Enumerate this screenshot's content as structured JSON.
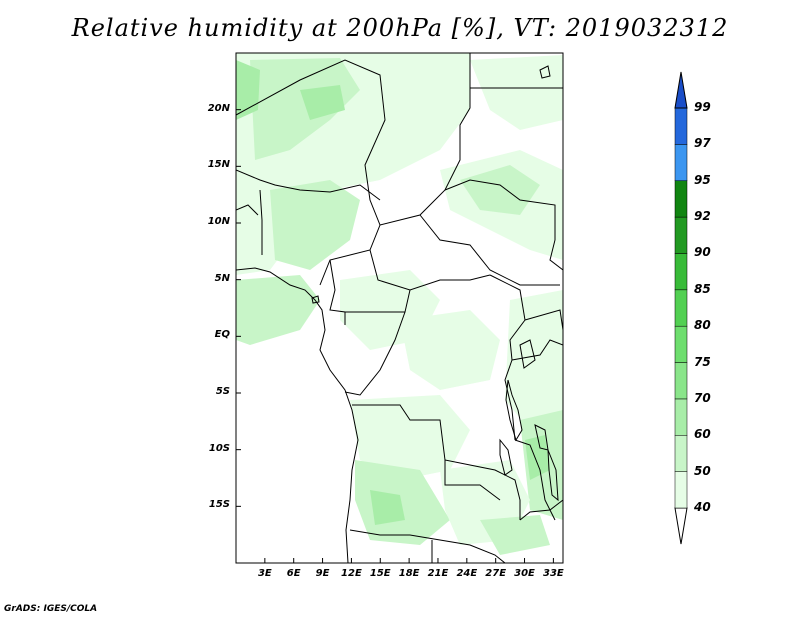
{
  "title": "Relative humidity at 200hPa [%], VT: 2019032312",
  "footer": "GrADS: IGES/COLA",
  "map": {
    "lon_range": [
      0,
      34
    ],
    "lat_range": [
      -20,
      25
    ],
    "lat_ticks": [
      {
        "value": 20,
        "label": "20N"
      },
      {
        "value": 15,
        "label": "15N"
      },
      {
        "value": 10,
        "label": "10N"
      },
      {
        "value": 5,
        "label": "5N"
      },
      {
        "value": 0,
        "label": "EQ"
      },
      {
        "value": -5,
        "label": "5S"
      },
      {
        "value": -10,
        "label": "10S"
      },
      {
        "value": -15,
        "label": "15S"
      }
    ],
    "lon_ticks": [
      {
        "value": 3,
        "label": "3E"
      },
      {
        "value": 6,
        "label": "6E"
      },
      {
        "value": 9,
        "label": "9E"
      },
      {
        "value": 12,
        "label": "12E"
      },
      {
        "value": 15,
        "label": "15E"
      },
      {
        "value": 18,
        "label": "18E"
      },
      {
        "value": 21,
        "label": "21E"
      },
      {
        "value": 24,
        "label": "24E"
      },
      {
        "value": 27,
        "label": "27E"
      },
      {
        "value": 30,
        "label": "30E"
      },
      {
        "value": 33,
        "label": "33E"
      }
    ]
  },
  "colorbar": {
    "levels": [
      "40",
      "50",
      "60",
      "70",
      "75",
      "80",
      "85",
      "90",
      "92",
      "95",
      "97",
      "99"
    ],
    "colors": [
      "#ffffff",
      "#e6fde6",
      "#c8f5c8",
      "#a8eda8",
      "#8ae58a",
      "#6ede6e",
      "#52d052",
      "#38bb38",
      "#229a22",
      "#118511",
      "#3c96f0",
      "#2468dc",
      "#1a4ec8"
    ]
  },
  "colors": {
    "land_outline": "#000000",
    "humidity_light": "#e6fde6",
    "humidity_mid": "#c8f5c8",
    "humidity_high": "#a8eda8"
  }
}
